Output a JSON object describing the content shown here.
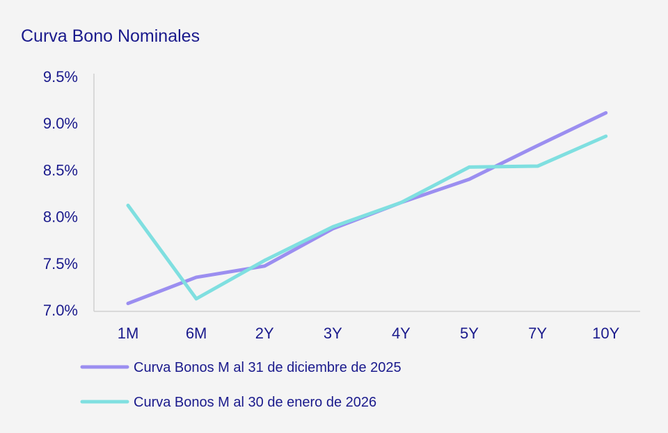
{
  "chart_data": {
    "type": "line",
    "title": "Curva Bono Nominales",
    "xlabel": "",
    "ylabel": "",
    "categories": [
      "1M",
      "6M",
      "2Y",
      "3Y",
      "4Y",
      "5Y",
      "7Y",
      "10Y"
    ],
    "ylim": [
      7.0,
      9.5
    ],
    "yticks": [
      "7.0%",
      "7.5%",
      "8.0%",
      "8.5%",
      "9.0%",
      "9.5%"
    ],
    "grid": false,
    "legend_placement": "bottom-left",
    "series": [
      {
        "name": "Curva Bonos M al 31 de diciembre de 2025",
        "color": "#9b8ef0",
        "values": [
          7.07,
          7.35,
          7.47,
          7.87,
          8.15,
          8.4,
          8.76,
          9.11
        ]
      },
      {
        "name": "Curva Bonos M al 30 de enero de 2026",
        "color": "#7fdfe0",
        "values": [
          8.12,
          7.12,
          7.53,
          7.89,
          8.15,
          8.53,
          8.54,
          8.86
        ]
      }
    ]
  }
}
